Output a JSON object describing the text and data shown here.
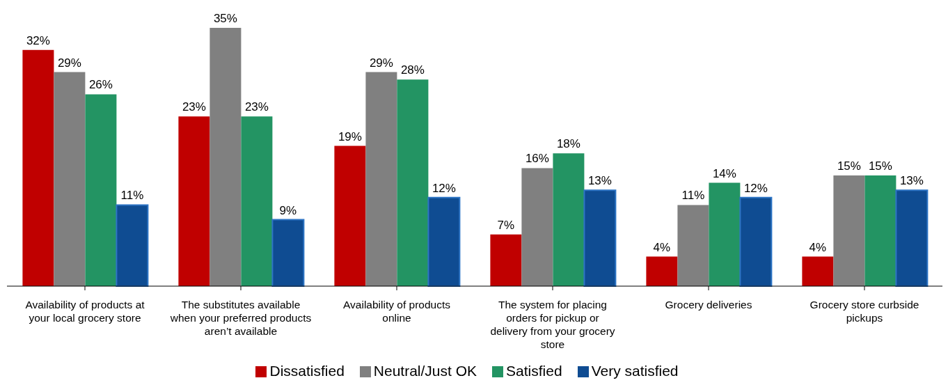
{
  "chart_data": {
    "type": "bar",
    "categories": [
      "Availability of products at your local grocery store",
      "The substitutes available when your preferred products aren’t available",
      "Availability of products online",
      "The system for placing orders for pickup or delivery from your grocery store",
      "Grocery deliveries",
      "Grocery store curbside pickups"
    ],
    "series": [
      {
        "name": "Dissatisfied",
        "color": "#c00000",
        "values": [
          32,
          23,
          19,
          7,
          4,
          4
        ],
        "value_labels": [
          "32%",
          "23%",
          "19%",
          "7%",
          "4%",
          "4%"
        ]
      },
      {
        "name": "Neutral/Just OK",
        "color": "#808080",
        "values": [
          29,
          35,
          29,
          16,
          11,
          15
        ],
        "value_labels": [
          "29%",
          "35%",
          "29%",
          "16%",
          "11%",
          "15%"
        ]
      },
      {
        "name": "Satisfied",
        "color": "#239463",
        "values": [
          26,
          23,
          28,
          18,
          14,
          15
        ],
        "value_labels": [
          "26%",
          "23%",
          "28%",
          "18%",
          "14%",
          "15%"
        ]
      },
      {
        "name": "Very satisfied",
        "color": "#0f4c92",
        "values": [
          11,
          9,
          12,
          13,
          12,
          13
        ],
        "value_labels": [
          "11%",
          "9%",
          "12%",
          "13%",
          "12%",
          "13%"
        ]
      }
    ],
    "legend": "bottom"
  }
}
